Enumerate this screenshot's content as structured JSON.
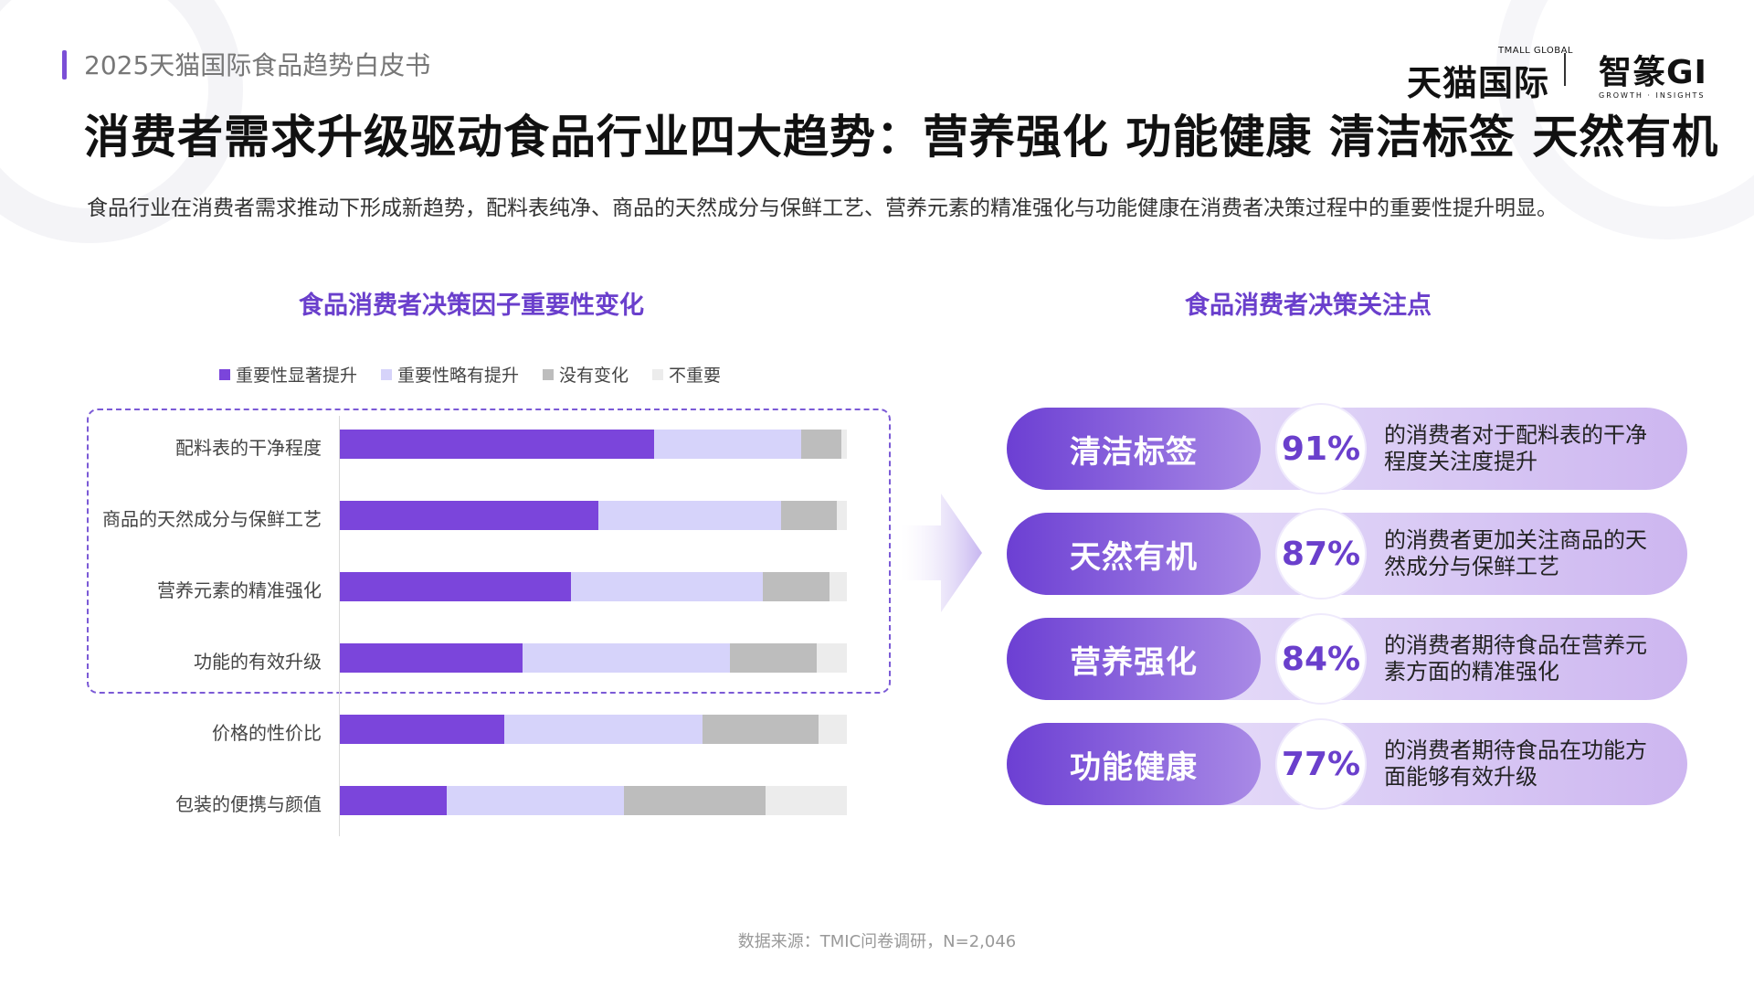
{
  "header": {
    "subtitle": "2025天猫国际食品趋势白皮书",
    "logo_tmall_small": "TMALL GLOBAL",
    "logo_tmall": "天猫国际",
    "logo_gi": "智篆GI",
    "logo_gi_small": "GROWTH · INSIGHTS"
  },
  "title": "消费者需求升级驱动食品行业四大趋势：营养强化  功能健康  清洁标签  天然有机",
  "description": "食品行业在消费者需求推动下形成新趋势，配料表纯净、商品的天然成分与保鲜工艺、营养元素的精准强化与功能健康在消费者决策过程中的重要性提升明显。",
  "left_title": "食品消费者决策因子重要性变化",
  "right_title": "食品消费者决策关注点",
  "colors": {
    "s1": "#7b45db",
    "s2": "#d6d3fa",
    "s3": "#bdbdbd",
    "s4": "#ececec",
    "accent": "#6a3fcc"
  },
  "chart_data": {
    "type": "bar",
    "orientation": "horizontal",
    "stacked": true,
    "categories": [
      "配料表的干净程度",
      "商品的天然成分与保鲜工艺",
      "营养元素的精准强化",
      "功能的有效升级",
      "价格的性价比",
      "包装的便携与颜值"
    ],
    "series": [
      {
        "name": "重要性显著提升",
        "values": [
          62,
          51,
          45.5,
          36,
          32.5,
          21
        ]
      },
      {
        "name": "重要性略有提升",
        "values": [
          29,
          36,
          38,
          41,
          39,
          35
        ]
      },
      {
        "name": "没有变化",
        "values": [
          8,
          11,
          13,
          17,
          23,
          28
        ]
      },
      {
        "name": "不重要",
        "values": [
          1,
          2,
          3.5,
          6,
          5.5,
          16
        ]
      }
    ],
    "xlim": [
      0,
      100
    ],
    "legend": "top",
    "highlighted_categories": [
      "配料表的干净程度",
      "商品的天然成分与保鲜工艺",
      "营养元素的精准强化",
      "功能的有效升级"
    ]
  },
  "cards": [
    {
      "label": "清洁标签",
      "percent": "91%",
      "text": "的消费者对于配料表的干净程度关注度提升"
    },
    {
      "label": "天然有机",
      "percent": "87%",
      "text": "的消费者更加关注商品的天然成分与保鲜工艺"
    },
    {
      "label": "营养强化",
      "percent": "84%",
      "text": "的消费者期待食品在营养元素方面的精准强化"
    },
    {
      "label": "功能健康",
      "percent": "77%",
      "text": "的消费者期待食品在功能方面能够有效升级"
    }
  ],
  "source": "数据来源：TMIC问卷调研，N=2,046"
}
